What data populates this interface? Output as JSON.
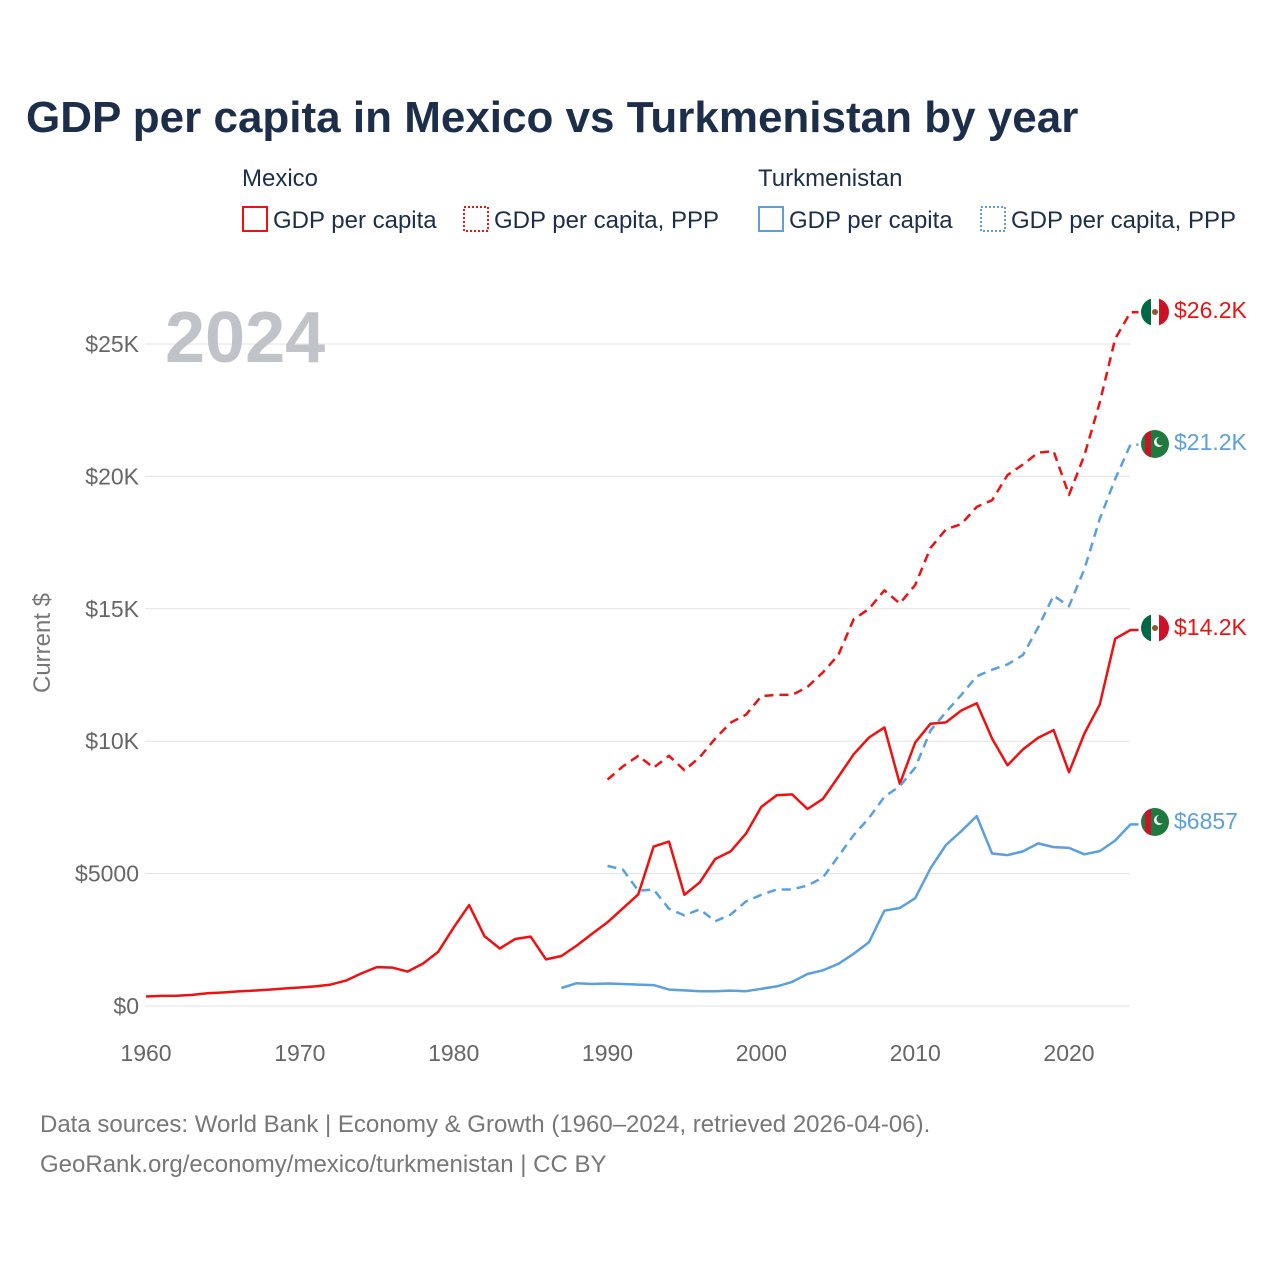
{
  "title": "GDP per capita in Mexico vs Turkmenistan by year",
  "year_label": "2024",
  "legend": {
    "groups": [
      {
        "name": "Mexico",
        "color": "#ee1111",
        "items": [
          "GDP per capita",
          "GDP per capita, PPP"
        ]
      },
      {
        "name": "Turkmenistan",
        "color": "#5aa0e0",
        "items": [
          "GDP per capita",
          "GDP per capita, PPP"
        ]
      }
    ]
  },
  "end_labels": {
    "mex_ppp": "$26.2K",
    "tkm_ppp": "$21.2K",
    "mex_gdp": "$14.2K",
    "tkm_gdp": "$6857"
  },
  "source_line1": "Data sources: World Bank | Economy & Growth (1960–2024, retrieved 2026-04-06).",
  "source_line2": "GeoRank.org/economy/mexico/turkmenistan | CC BY",
  "chart_data": {
    "type": "line",
    "title": "GDP per capita in Mexico vs Turkmenistan by year",
    "xlabel": "",
    "ylabel": "Current $",
    "xlim": [
      1960,
      2024
    ],
    "ylim": [
      0,
      25000
    ],
    "x_ticks": [
      1960,
      1970,
      1980,
      1990,
      2000,
      2010,
      2020
    ],
    "y_ticks": [
      0,
      5000,
      10000,
      15000,
      20000,
      25000
    ],
    "y_tick_labels": [
      "$0",
      "$5000",
      "$10K",
      "$15K",
      "$20K",
      "$25K"
    ],
    "grid": true,
    "series": [
      {
        "key": "mex_gdp",
        "name": "Mexico GDP per capita",
        "color": "#ee1111",
        "style": "solid",
        "x": [
          1960,
          1961,
          1962,
          1963,
          1964,
          1965,
          1966,
          1967,
          1968,
          1969,
          1970,
          1971,
          1972,
          1973,
          1974,
          1975,
          1976,
          1977,
          1978,
          1979,
          1980,
          1981,
          1982,
          1983,
          1984,
          1985,
          1986,
          1987,
          1988,
          1989,
          1990,
          1991,
          1992,
          1993,
          1994,
          1995,
          1996,
          1997,
          1998,
          1999,
          2000,
          2001,
          2002,
          2003,
          2004,
          2005,
          2006,
          2007,
          2008,
          2009,
          2010,
          2011,
          2012,
          2013,
          2014,
          2015,
          2016,
          2017,
          2018,
          2019,
          2020,
          2021,
          2022,
          2023,
          2024
        ],
        "values": [
          360,
          380,
          390,
          420,
          480,
          510,
          550,
          580,
          620,
          660,
          700,
          740,
          810,
          960,
          1230,
          1470,
          1450,
          1300,
          1600,
          2050,
          2970,
          3810,
          2640,
          2170,
          2530,
          2620,
          1760,
          1890,
          2280,
          2730,
          3160,
          3690,
          4220,
          6020,
          6210,
          4200,
          4670,
          5550,
          5840,
          6510,
          7520,
          7960,
          7990,
          7440,
          7820,
          8650,
          9500,
          10140,
          10520,
          8390,
          9950,
          10660,
          10710,
          11160,
          11430,
          10100,
          9090,
          9690,
          10130,
          10420,
          8830,
          10290,
          11390,
          13870,
          14200
        ]
      },
      {
        "key": "mex_ppp",
        "name": "Mexico GDP per capita, PPP",
        "color": "#ee1111",
        "style": "dashed",
        "x": [
          1990,
          1991,
          1992,
          1993,
          1994,
          1995,
          1996,
          1997,
          1998,
          1999,
          2000,
          2001,
          2002,
          2003,
          2004,
          2005,
          2006,
          2007,
          2008,
          2009,
          2010,
          2011,
          2012,
          2013,
          2014,
          2015,
          2016,
          2017,
          2018,
          2019,
          2020,
          2021,
          2022,
          2023,
          2024
        ],
        "values": [
          8550,
          9050,
          9450,
          9000,
          9450,
          8900,
          9400,
          10100,
          10700,
          11000,
          11700,
          11750,
          11750,
          12050,
          12600,
          13250,
          14600,
          15000,
          15700,
          15200,
          15900,
          17300,
          18000,
          18200,
          18850,
          19100,
          20050,
          20450,
          20900,
          20950,
          19300,
          20800,
          22800,
          25200,
          26200
        ]
      },
      {
        "key": "tkm_gdp",
        "name": "Turkmenistan GDP per capita",
        "color": "#5aa0e0",
        "style": "solid",
        "x": [
          1987,
          1988,
          1989,
          1990,
          1991,
          1992,
          1993,
          1994,
          1995,
          1996,
          1997,
          1998,
          1999,
          2000,
          2001,
          2002,
          2003,
          2004,
          2005,
          2006,
          2007,
          2008,
          2009,
          2010,
          2011,
          2012,
          2013,
          2014,
          2015,
          2016,
          2017,
          2018,
          2019,
          2020,
          2021,
          2022,
          2023,
          2024
        ],
        "values": [
          680,
          860,
          830,
          850,
          830,
          810,
          790,
          620,
          590,
          560,
          560,
          580,
          560,
          650,
          740,
          910,
          1210,
          1350,
          1590,
          1970,
          2410,
          3600,
          3700,
          4070,
          5200,
          6080,
          6600,
          7170,
          5760,
          5700,
          5840,
          6140,
          6000,
          5970,
          5730,
          5850,
          6250,
          6857
        ]
      },
      {
        "key": "tkm_ppp",
        "name": "Turkmenistan GDP per capita, PPP",
        "color": "#5aa0e0",
        "style": "dashed",
        "x": [
          1990,
          1991,
          1992,
          1993,
          1994,
          1995,
          1996,
          1997,
          1998,
          1999,
          2000,
          2001,
          2002,
          2003,
          2004,
          2005,
          2006,
          2007,
          2008,
          2009,
          2010,
          2011,
          2012,
          2013,
          2014,
          2015,
          2016,
          2017,
          2018,
          2019,
          2020,
          2021,
          2022,
          2023,
          2024
        ],
        "values": [
          5290,
          5150,
          4350,
          4400,
          3670,
          3420,
          3650,
          3200,
          3450,
          3950,
          4200,
          4400,
          4400,
          4550,
          4850,
          5650,
          6450,
          7100,
          7900,
          8300,
          9000,
          10400,
          11100,
          11750,
          12450,
          12700,
          12900,
          13250,
          14300,
          15500,
          15100,
          16500,
          18400,
          19900,
          21200
        ]
      }
    ]
  }
}
